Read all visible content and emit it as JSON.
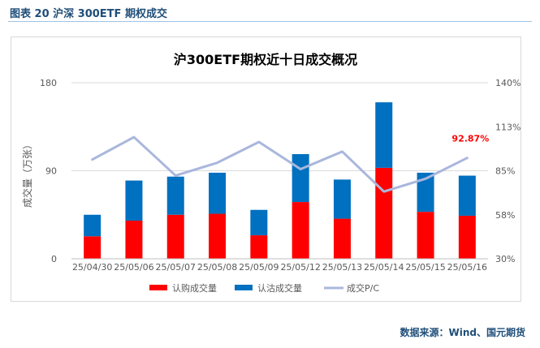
{
  "figure_caption": "图表 20 沪深 300ETF 期权成交",
  "source_note": "数据来源：Wind、国元期货",
  "colors": {
    "call": "#ff0000",
    "put": "#0070c0",
    "ratio": "#a9b7dc",
    "highlight": "#ff0000"
  },
  "chart_data": {
    "type": "bar",
    "stacked": true,
    "title": "沪300ETF期权近十日成交概况",
    "categories": [
      "25/04/30",
      "25/05/06",
      "25/05/07",
      "25/05/08",
      "25/05/09",
      "25/05/12",
      "25/05/13",
      "25/05/14",
      "25/05/15",
      "25/05/16"
    ],
    "series": [
      {
        "name": "认购成交量",
        "type": "bar",
        "axis": "left",
        "values": [
          23,
          39,
          45,
          46,
          24,
          58,
          41,
          93,
          48,
          44
        ]
      },
      {
        "name": "认沽成交量",
        "type": "bar",
        "axis": "left",
        "values": [
          22,
          41,
          39,
          42,
          26,
          49,
          40,
          67,
          40,
          41
        ]
      },
      {
        "name": "成交P/C",
        "type": "line",
        "axis": "right",
        "values": [
          0.92,
          1.06,
          0.82,
          0.9,
          1.03,
          0.86,
          0.97,
          0.72,
          0.8,
          0.93
        ]
      }
    ],
    "ylabel": "成交量（万张）",
    "ylim": [
      0,
      180
    ],
    "yticks": [
      "0",
      "90",
      "180"
    ],
    "y2lim": [
      0.3,
      1.4
    ],
    "y2ticks": [
      "30%",
      "58%",
      "85%",
      "113%",
      "140%"
    ],
    "annotation": {
      "category": "25/05/16",
      "label": "92.87%"
    },
    "legend_position": "bottom",
    "grid": "horizontal"
  }
}
